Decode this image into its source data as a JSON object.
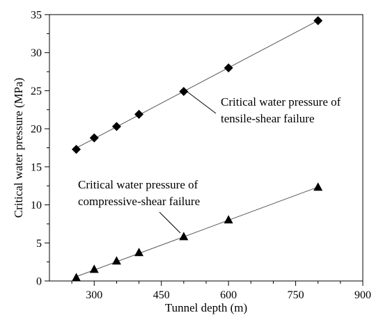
{
  "chart_data": {
    "type": "scatter",
    "xlabel": "Tunnel depth (m)",
    "ylabel": "Critical water pressure (MPa)",
    "xlim": [
      200,
      900
    ],
    "ylim": [
      0,
      35
    ],
    "xticks": [
      300,
      450,
      600,
      750,
      900
    ],
    "yticks": [
      0,
      5,
      10,
      15,
      20,
      25,
      30,
      35
    ],
    "x_minor_step": 50,
    "y_minor_step": 2.5,
    "grid": false,
    "legend": "none",
    "series": [
      {
        "marker": "diamond",
        "color": "#000000",
        "fit_line": true,
        "annotation": [
          "Critical water pressure of",
          "tensile-shear failure"
        ],
        "points": [
          {
            "x": 260,
            "y": 17.3
          },
          {
            "x": 300,
            "y": 18.8
          },
          {
            "x": 350,
            "y": 20.3
          },
          {
            "x": 400,
            "y": 21.9
          },
          {
            "x": 500,
            "y": 24.9
          },
          {
            "x": 600,
            "y": 28.0
          },
          {
            "x": 800,
            "y": 34.2
          }
        ]
      },
      {
        "marker": "triangle",
        "color": "#000000",
        "fit_line": true,
        "annotation": [
          "Critical water pressure of",
          "compressive-shear failure"
        ],
        "points": [
          {
            "x": 260,
            "y": 0.4
          },
          {
            "x": 300,
            "y": 1.5
          },
          {
            "x": 350,
            "y": 2.6
          },
          {
            "x": 400,
            "y": 3.7
          },
          {
            "x": 500,
            "y": 5.8
          },
          {
            "x": 600,
            "y": 8.0
          },
          {
            "x": 800,
            "y": 12.3
          }
        ]
      }
    ]
  }
}
